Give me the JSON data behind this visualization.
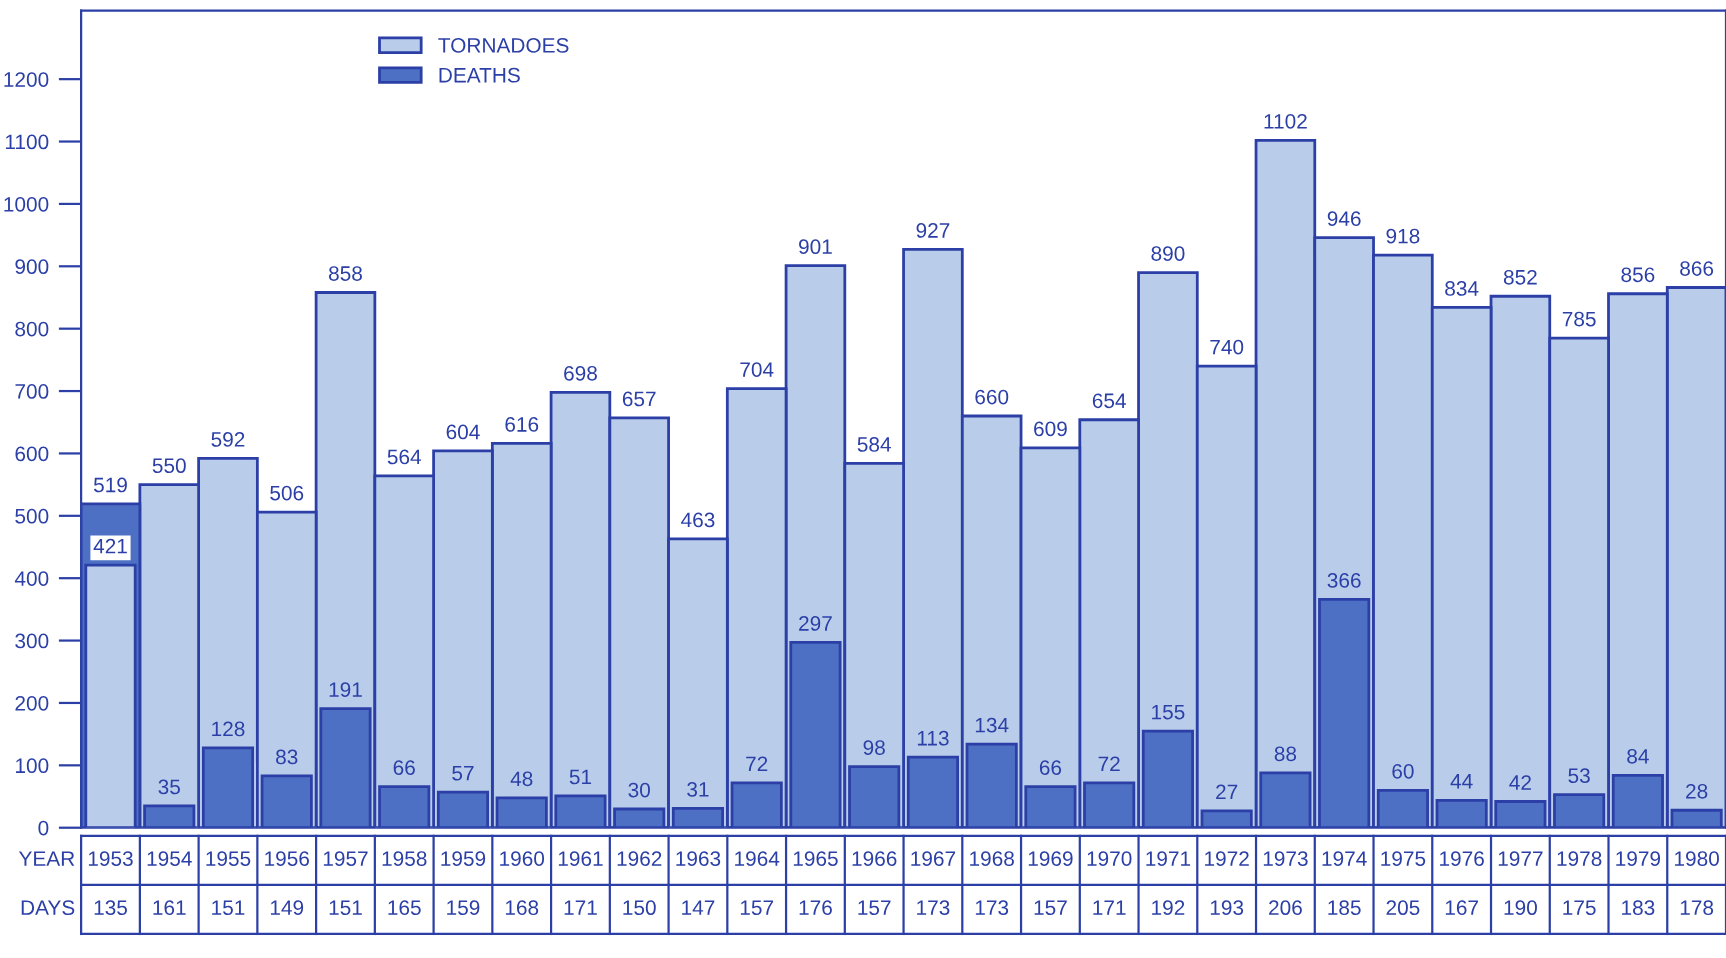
{
  "chart_data": {
    "type": "bar",
    "xlabel": "YEAR",
    "categories": [
      "1953",
      "1954",
      "1955",
      "1956",
      "1957",
      "1958",
      "1959",
      "1960",
      "1961",
      "1962",
      "1963",
      "1964",
      "1965",
      "1966",
      "1967",
      "1968",
      "1969",
      "1970",
      "1971",
      "1972",
      "1973",
      "1974",
      "1975",
      "1976",
      "1977",
      "1978",
      "1979",
      "1980"
    ],
    "series": [
      {
        "name": "TORNADOES",
        "color": "#b9cdeb",
        "values": [
          421,
          550,
          592,
          506,
          858,
          564,
          604,
          616,
          698,
          657,
          463,
          704,
          901,
          584,
          927,
          660,
          609,
          654,
          890,
          740,
          1102,
          946,
          918,
          834,
          852,
          785,
          856,
          866
        ]
      },
      {
        "name": "DEATHS",
        "color": "#4d70c4",
        "values": [
          519,
          35,
          128,
          83,
          191,
          66,
          57,
          48,
          51,
          30,
          31,
          72,
          297,
          98,
          113,
          134,
          66,
          72,
          155,
          27,
          88,
          366,
          60,
          44,
          42,
          53,
          84,
          28
        ]
      }
    ],
    "ylim": [
      0,
      1310
    ],
    "yticks": [
      0,
      100,
      200,
      300,
      400,
      500,
      600,
      700,
      800,
      900,
      1000,
      1100,
      1200
    ],
    "data_labels": true,
    "legend": "top left",
    "annotations": [
      "DAYS",
      "135",
      "161",
      "151",
      "149",
      "151",
      "165",
      "159",
      "168",
      "171",
      "150",
      "147",
      "157",
      "176",
      "157",
      "173",
      "173",
      "157",
      "171",
      "192",
      "193",
      "206",
      "185",
      "205",
      "167",
      "190",
      "175",
      "183",
      "178"
    ]
  }
}
